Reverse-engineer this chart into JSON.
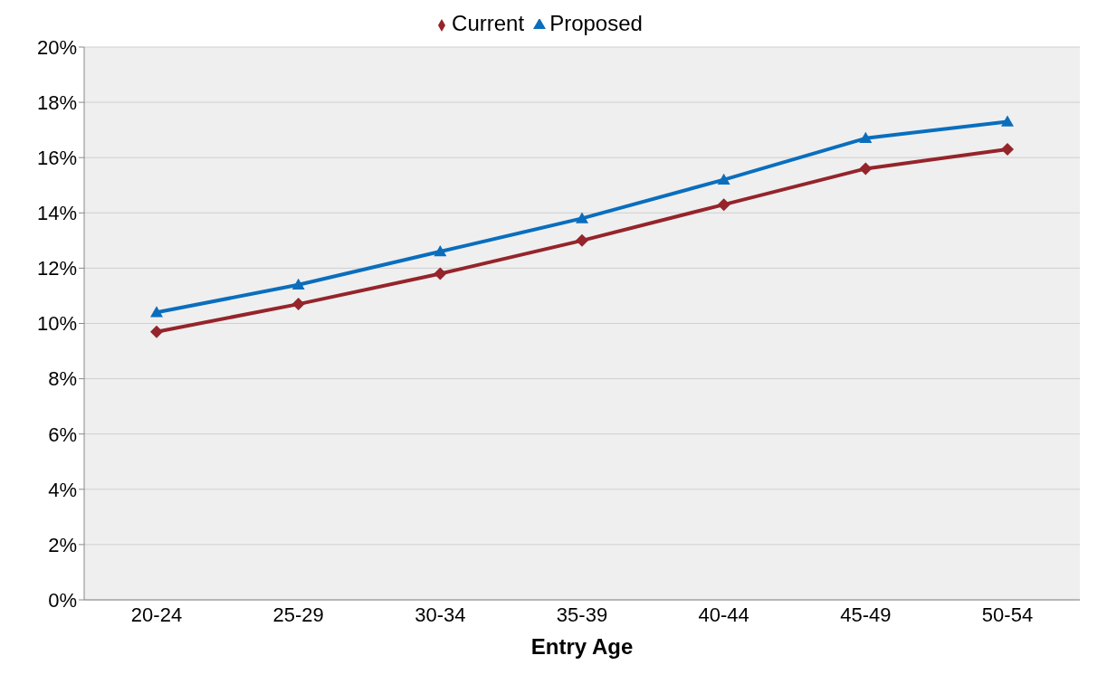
{
  "chart_data": {
    "type": "line",
    "xlabel": "Entry Age",
    "categories": [
      "20-24",
      "25-29",
      "30-34",
      "35-39",
      "40-44",
      "45-49",
      "50-54"
    ],
    "series": [
      {
        "name": "Current",
        "color": "#95242b",
        "marker": "diamond",
        "values": [
          9.7,
          10.7,
          11.8,
          13.0,
          14.3,
          15.6,
          16.3
        ]
      },
      {
        "name": "Proposed",
        "color": "#0a6ebd",
        "marker": "triangle",
        "values": [
          10.4,
          11.4,
          12.6,
          13.8,
          15.2,
          16.7,
          17.3
        ]
      }
    ],
    "ylim": [
      0,
      20
    ],
    "yticks": [
      {
        "value": 0,
        "label": "0%"
      },
      {
        "value": 2,
        "label": "2%"
      },
      {
        "value": 4,
        "label": "4%"
      },
      {
        "value": 6,
        "label": "6%"
      },
      {
        "value": 8,
        "label": "8%"
      },
      {
        "value": 10,
        "label": "10%"
      },
      {
        "value": 12,
        "label": "12%"
      },
      {
        "value": 14,
        "label": "14%"
      },
      {
        "value": 16,
        "label": "16%"
      },
      {
        "value": 18,
        "label": "18%"
      },
      {
        "value": 20,
        "label": "20%"
      }
    ],
    "grid": "y",
    "legend": "top",
    "line_style": "solid"
  }
}
